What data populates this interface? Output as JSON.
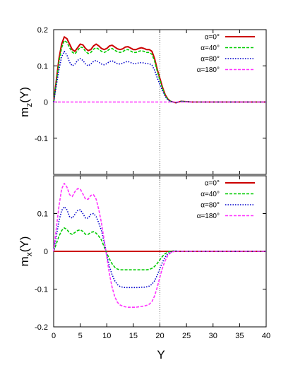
{
  "chart_data": {
    "type": "line",
    "xlabel": "Y",
    "xlim": [
      0,
      40
    ],
    "x_ticks": [
      0,
      5,
      10,
      15,
      20,
      25,
      30,
      35,
      40
    ],
    "vertical_marker_x": 20,
    "legend_position": "top-right",
    "series_meta": [
      {
        "name": "α=0°",
        "color": "#cc0000",
        "dash": "solid"
      },
      {
        "name": "α=40°",
        "color": "#00cc00",
        "dash": "dashed"
      },
      {
        "name": "α=80°",
        "color": "#0000cc",
        "dash": "dotted"
      },
      {
        "name": "α=180°",
        "color": "#ff33ff",
        "dash": "dashed"
      }
    ],
    "panels": [
      {
        "id": "top",
        "ylabel_main": "m",
        "ylabel_sub": "z",
        "ylabel_tail": "(Y)",
        "ylim": [
          -0.2,
          0.2
        ],
        "y_ticks": [
          0.2,
          0.1,
          0,
          -0.1
        ],
        "y_tick_labels": [
          "0.2",
          "0.1",
          "0",
          "-0.1"
        ],
        "series": [
          {
            "name": "α=0°",
            "x": [
              0,
              0.5,
              1,
              1.5,
              2,
              2.5,
              3,
              3.5,
              4,
              4.5,
              5,
              5.5,
              6,
              6.5,
              7,
              7.5,
              8,
              8.5,
              9,
              9.5,
              10,
              10.5,
              11,
              11.5,
              12,
              12.5,
              13,
              13.5,
              14,
              14.5,
              15,
              15.5,
              16,
              16.5,
              17,
              17.5,
              18,
              18.5,
              19,
              19.5,
              20,
              20.5,
              21,
              21.5,
              22,
              22.5,
              23,
              23.5,
              24,
              25,
              26,
              27,
              28,
              29,
              30,
              31,
              32,
              33,
              34,
              35,
              36,
              37,
              38,
              39,
              40
            ],
            "y": [
              0,
              0.06,
              0.12,
              0.16,
              0.18,
              0.175,
              0.16,
              0.145,
              0.14,
              0.15,
              0.16,
              0.158,
              0.148,
              0.142,
              0.145,
              0.155,
              0.16,
              0.155,
              0.148,
              0.145,
              0.148,
              0.155,
              0.157,
              0.152,
              0.147,
              0.145,
              0.147,
              0.152,
              0.153,
              0.149,
              0.145,
              0.145,
              0.148,
              0.15,
              0.148,
              0.145,
              0.145,
              0.14,
              0.12,
              0.09,
              0.065,
              0.04,
              0.02,
              0.008,
              0.002,
              0,
              -0.002,
              0,
              0.002,
              0.001,
              0,
              0,
              0,
              0,
              0,
              0,
              0,
              0,
              0,
              0,
              0,
              0,
              0,
              0,
              0
            ]
          },
          {
            "name": "α=40°",
            "x": [
              0,
              0.5,
              1,
              1.5,
              2,
              2.5,
              3,
              3.5,
              4,
              4.5,
              5,
              5.5,
              6,
              6.5,
              7,
              7.5,
              8,
              8.5,
              9,
              9.5,
              10,
              10.5,
              11,
              11.5,
              12,
              12.5,
              13,
              13.5,
              14,
              14.5,
              15,
              15.5,
              16,
              16.5,
              17,
              17.5,
              18,
              18.5,
              19,
              19.5,
              20,
              20.5,
              21,
              21.5,
              22,
              22.5,
              23,
              23.5,
              24,
              25,
              26,
              27,
              28,
              29,
              30,
              31,
              32,
              33,
              34,
              35,
              36,
              37,
              38,
              39,
              40
            ],
            "y": [
              0,
              0.055,
              0.11,
              0.15,
              0.17,
              0.165,
              0.15,
              0.138,
              0.133,
              0.142,
              0.152,
              0.15,
              0.14,
              0.134,
              0.137,
              0.146,
              0.15,
              0.146,
              0.14,
              0.137,
              0.14,
              0.146,
              0.148,
              0.143,
              0.139,
              0.137,
              0.139,
              0.144,
              0.145,
              0.141,
              0.137,
              0.137,
              0.14,
              0.142,
              0.14,
              0.137,
              0.137,
              0.132,
              0.113,
              0.085,
              0.06,
              0.037,
              0.018,
              0.007,
              0.002,
              0,
              -0.002,
              0,
              0.002,
              0.001,
              0,
              0,
              0,
              0,
              0,
              0,
              0,
              0,
              0,
              0,
              0,
              0,
              0,
              0,
              0
            ]
          },
          {
            "name": "α=80°",
            "x": [
              0,
              0.5,
              1,
              1.5,
              2,
              2.5,
              3,
              3.5,
              4,
              4.5,
              5,
              5.5,
              6,
              6.5,
              7,
              7.5,
              8,
              8.5,
              9,
              9.5,
              10,
              10.5,
              11,
              11.5,
              12,
              12.5,
              13,
              13.5,
              14,
              14.5,
              15,
              15.5,
              16,
              16.5,
              17,
              17.5,
              18,
              18.5,
              19,
              19.5,
              20,
              20.5,
              21,
              21.5,
              22,
              22.5,
              23,
              23.5,
              24,
              25,
              26,
              27,
              28,
              29,
              30,
              31,
              32,
              33,
              34,
              35,
              36,
              37,
              38,
              39,
              40
            ],
            "y": [
              0,
              0.045,
              0.09,
              0.125,
              0.14,
              0.13,
              0.11,
              0.1,
              0.105,
              0.115,
              0.12,
              0.115,
              0.105,
              0.1,
              0.105,
              0.112,
              0.115,
              0.11,
              0.105,
              0.103,
              0.106,
              0.112,
              0.114,
              0.11,
              0.106,
              0.105,
              0.107,
              0.111,
              0.112,
              0.109,
              0.106,
              0.106,
              0.108,
              0.109,
              0.108,
              0.106,
              0.106,
              0.102,
              0.088,
              0.067,
              0.048,
              0.03,
              0.015,
              0.006,
              0.002,
              0,
              -0.002,
              0,
              0.002,
              0.001,
              0,
              0,
              0,
              0,
              0,
              0,
              0,
              0,
              0,
              0,
              0,
              0,
              0,
              0,
              0
            ]
          },
          {
            "name": "α=180°",
            "x": [
              0,
              40
            ],
            "y": [
              0,
              0
            ]
          }
        ]
      },
      {
        "id": "bottom",
        "ylabel_main": "m",
        "ylabel_sub": "x",
        "ylabel_tail": "(Y)",
        "ylim": [
          -0.2,
          0.2
        ],
        "y_ticks": [
          0.1,
          0,
          -0.1,
          -0.2
        ],
        "y_tick_labels": [
          "0.1",
          "0",
          "-0.1",
          "-0.2"
        ],
        "series": [
          {
            "name": "α=0°",
            "x": [
              0,
              40
            ],
            "y": [
              0,
              0
            ]
          },
          {
            "name": "α=40°",
            "x": [
              0,
              0.5,
              1,
              1.5,
              2,
              2.5,
              3,
              3.5,
              4,
              4.5,
              5,
              5.5,
              6,
              6.5,
              7,
              7.5,
              8,
              8.5,
              9,
              9.5,
              10,
              10.5,
              11,
              11.5,
              12,
              12.5,
              13,
              13.5,
              14,
              14.5,
              15,
              15.5,
              16,
              16.5,
              17,
              17.5,
              18,
              18.5,
              19,
              19.5,
              20,
              20.5,
              21,
              21.5,
              22,
              22.5,
              23,
              23.5,
              24,
              25,
              26,
              27,
              28,
              29,
              30,
              31,
              32,
              33,
              34,
              35,
              36,
              37,
              38,
              39,
              40
            ],
            "y": [
              0,
              0.02,
              0.04,
              0.055,
              0.062,
              0.058,
              0.048,
              0.045,
              0.05,
              0.055,
              0.057,
              0.053,
              0.045,
              0.045,
              0.05,
              0.052,
              0.048,
              0.04,
              0.03,
              0.012,
              -0.005,
              -0.02,
              -0.033,
              -0.042,
              -0.047,
              -0.049,
              -0.049,
              -0.049,
              -0.049,
              -0.049,
              -0.049,
              -0.049,
              -0.049,
              -0.049,
              -0.049,
              -0.049,
              -0.048,
              -0.045,
              -0.04,
              -0.032,
              -0.022,
              -0.013,
              -0.006,
              -0.002,
              0,
              0.001,
              0,
              0,
              0,
              0,
              0,
              0,
              0,
              0,
              0,
              0,
              0,
              0,
              0,
              0,
              0,
              0,
              0,
              0,
              0
            ]
          },
          {
            "name": "α=80°",
            "x": [
              0,
              0.5,
              1,
              1.5,
              2,
              2.5,
              3,
              3.5,
              4,
              4.5,
              5,
              5.5,
              6,
              6.5,
              7,
              7.5,
              8,
              8.5,
              9,
              9.5,
              10,
              10.5,
              11,
              11.5,
              12,
              12.5,
              13,
              13.5,
              14,
              14.5,
              15,
              15.5,
              16,
              16.5,
              17,
              17.5,
              18,
              18.5,
              19,
              19.5,
              20,
              20.5,
              21,
              21.5,
              22,
              22.5,
              23,
              23.5,
              24,
              25,
              26,
              27,
              28,
              29,
              30,
              31,
              32,
              33,
              34,
              35,
              36,
              37,
              38,
              39,
              40
            ],
            "y": [
              0,
              0.04,
              0.08,
              0.108,
              0.118,
              0.11,
              0.092,
              0.088,
              0.098,
              0.108,
              0.11,
              0.1,
              0.088,
              0.088,
              0.098,
              0.1,
              0.092,
              0.075,
              0.055,
              0.025,
              -0.01,
              -0.04,
              -0.062,
              -0.078,
              -0.088,
              -0.093,
              -0.095,
              -0.096,
              -0.096,
              -0.096,
              -0.096,
              -0.096,
              -0.096,
              -0.095,
              -0.095,
              -0.094,
              -0.092,
              -0.087,
              -0.078,
              -0.063,
              -0.045,
              -0.028,
              -0.015,
              -0.006,
              -0.002,
              0,
              0.001,
              0,
              0,
              0,
              0,
              0,
              0,
              0,
              0,
              0,
              0,
              0,
              0,
              0,
              0,
              0,
              0,
              0,
              0
            ]
          },
          {
            "name": "α=180°",
            "x": [
              0,
              0.5,
              1,
              1.5,
              2,
              2.5,
              3,
              3.5,
              4,
              4.5,
              5,
              5.5,
              6,
              6.5,
              7,
              7.5,
              8,
              8.5,
              9,
              9.5,
              10,
              10.5,
              11,
              11.5,
              12,
              12.5,
              13,
              13.5,
              14,
              14.5,
              15,
              15.5,
              16,
              16.5,
              17,
              17.5,
              18,
              18.5,
              19,
              19.5,
              20,
              20.5,
              21,
              21.5,
              22,
              22.5,
              23,
              23.5,
              24,
              25,
              26,
              27,
              28,
              29,
              30,
              31,
              32,
              33,
              34,
              35,
              36,
              37,
              38,
              39,
              40
            ],
            "y": [
              0,
              0.06,
              0.12,
              0.165,
              0.18,
              0.17,
              0.15,
              0.145,
              0.158,
              0.166,
              0.165,
              0.152,
              0.138,
              0.138,
              0.148,
              0.15,
              0.138,
              0.11,
              0.075,
              0.03,
              -0.015,
              -0.06,
              -0.095,
              -0.12,
              -0.135,
              -0.142,
              -0.145,
              -0.147,
              -0.148,
              -0.148,
              -0.148,
              -0.148,
              -0.147,
              -0.146,
              -0.145,
              -0.143,
              -0.14,
              -0.133,
              -0.118,
              -0.095,
              -0.068,
              -0.043,
              -0.024,
              -0.011,
              -0.004,
              -0.001,
              0,
              0,
              0,
              0,
              0,
              0,
              0,
              0,
              0,
              0,
              0,
              0,
              0,
              0,
              0,
              0,
              0,
              0,
              0
            ]
          }
        ]
      }
    ]
  }
}
